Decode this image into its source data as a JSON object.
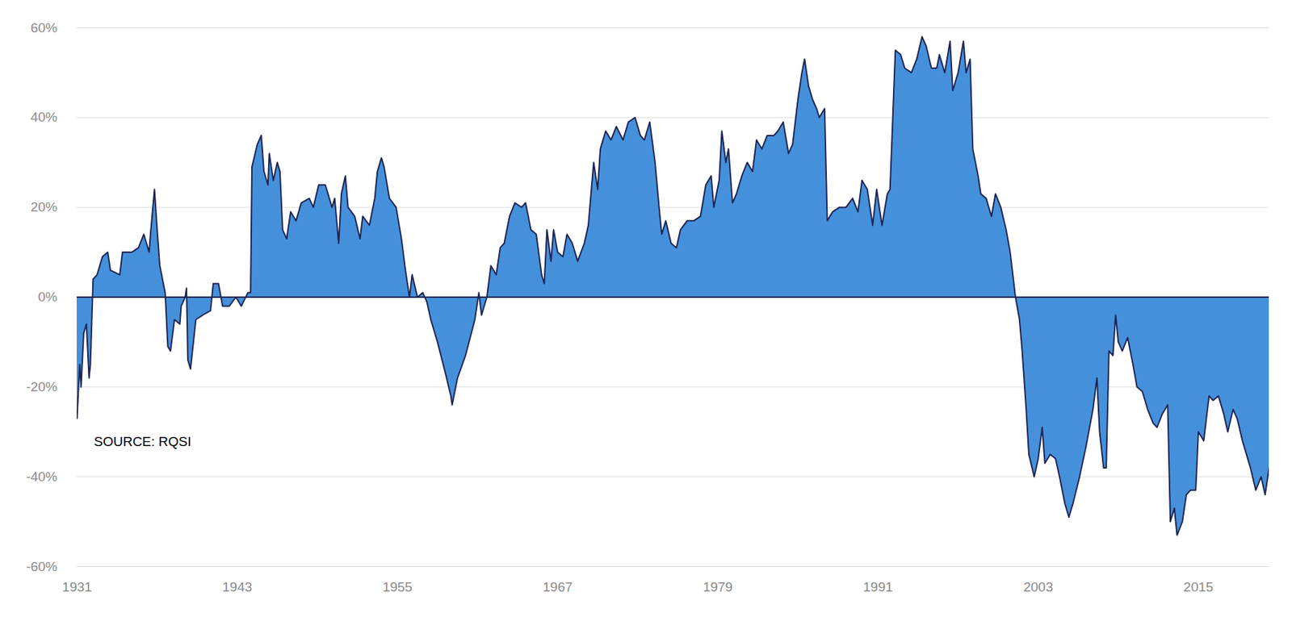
{
  "chart_data": {
    "type": "area",
    "color": "#4590db",
    "grid": true,
    "annotations": [
      {
        "text": "SOURCE: RQSI"
      }
    ],
    "xlim": [
      1931,
      2020.3
    ],
    "xticks": [
      1931,
      1943,
      1955,
      1967,
      1979,
      1991,
      2003,
      2015
    ],
    "ylim": [
      -60,
      60
    ],
    "yticks": [
      {
        "value": -60,
        "label": "-60%"
      },
      {
        "value": -40,
        "label": "-40%"
      },
      {
        "value": -20,
        "label": "-20%"
      },
      {
        "value": 0,
        "label": "0%"
      },
      {
        "value": 20,
        "label": "20%"
      },
      {
        "value": 40,
        "label": "40%"
      },
      {
        "value": 60,
        "label": "60%"
      }
    ],
    "x": [
      1931.0,
      1931.2,
      1931.3,
      1931.5,
      1931.7,
      1931.9,
      1932.0,
      1932.2,
      1932.5,
      1932.9,
      1933.3,
      1933.5,
      1934.2,
      1934.4,
      1935.1,
      1935.6,
      1936.0,
      1936.4,
      1936.5,
      1936.8,
      1937.0,
      1937.2,
      1937.6,
      1937.8,
      1938.0,
      1938.3,
      1938.7,
      1938.8,
      1939.1,
      1939.2,
      1939.3,
      1939.5,
      1939.9,
      1940.4,
      1941.0,
      1941.2,
      1941.6,
      1941.9,
      1942.4,
      1942.9,
      1943.3,
      1943.8,
      1944.0,
      1944.1,
      1944.5,
      1944.8,
      1945.0,
      1945.3,
      1945.4,
      1945.7,
      1946.0,
      1946.2,
      1946.4,
      1946.7,
      1947.0,
      1947.4,
      1947.8,
      1948.4,
      1948.7,
      1949.1,
      1949.6,
      1950.1,
      1950.3,
      1950.6,
      1950.8,
      1951.1,
      1951.3,
      1951.8,
      1952.2,
      1952.4,
      1952.9,
      1953.3,
      1953.5,
      1953.8,
      1954.0,
      1954.4,
      1954.9,
      1955.3,
      1955.6,
      1955.9,
      1956.1,
      1956.5,
      1956.9,
      1957.2,
      1957.5,
      1958.0,
      1958.6,
      1959.0,
      1959.1,
      1959.5,
      1960.1,
      1960.8,
      1961.1,
      1961.3,
      1961.7,
      1962.0,
      1962.4,
      1962.7,
      1963.0,
      1963.4,
      1963.8,
      1964.3,
      1964.6,
      1965.0,
      1965.4,
      1965.8,
      1966.0,
      1966.2,
      1966.5,
      1966.7,
      1967.0,
      1967.4,
      1967.7,
      1968.1,
      1968.5,
      1969.0,
      1969.3,
      1969.7,
      1970.0,
      1970.2,
      1970.6,
      1971.0,
      1971.4,
      1971.9,
      1972.3,
      1972.8,
      1973.2,
      1973.5,
      1973.9,
      1974.3,
      1974.6,
      1974.8,
      1975.1,
      1975.5,
      1975.9,
      1976.2,
      1976.7,
      1977.2,
      1977.7,
      1978.1,
      1978.5,
      1978.7,
      1979.1,
      1979.3,
      1979.6,
      1979.8,
      1980.1,
      1980.4,
      1980.8,
      1981.2,
      1981.6,
      1981.9,
      1982.3,
      1982.7,
      1983.2,
      1983.5,
      1983.9,
      1984.3,
      1984.6,
      1985.0,
      1985.3,
      1985.5,
      1985.8,
      1986.1,
      1986.4,
      1986.6,
      1987.0,
      1987.2,
      1987.6,
      1988.1,
      1988.6,
      1989.1,
      1989.5,
      1989.8,
      1990.2,
      1990.6,
      1990.9,
      1991.3,
      1991.7,
      1991.9,
      1992.3,
      1992.7,
      1993.0,
      1993.5,
      1993.9,
      1994.3,
      1994.6,
      1995.0,
      1995.4,
      1995.6,
      1996.0,
      1996.4,
      1996.6,
      1997.0,
      1997.4,
      1997.6,
      1997.9,
      1998.1,
      1998.5,
      1998.7,
      1999.1,
      1999.5,
      1999.8,
      2000.2,
      2000.6,
      2000.9,
      2001.3,
      2001.6,
      2001.8,
      2002.1,
      2002.3,
      2002.7,
      2003.0,
      2003.3,
      2003.5,
      2003.9,
      2004.3,
      2004.6,
      2005.0,
      2005.3,
      2005.6,
      2006.1,
      2006.6,
      2007.1,
      2007.4,
      2007.6,
      2007.9,
      2008.1,
      2008.3,
      2008.6,
      2008.8,
      2009.0,
      2009.3,
      2009.7,
      2010.1,
      2010.4,
      2010.8,
      2011.2,
      2011.6,
      2011.9,
      2012.3,
      2012.7,
      2012.9,
      2013.2,
      2013.4,
      2013.8,
      2014.1,
      2014.4,
      2014.8,
      2015.0,
      2015.4,
      2015.8,
      2016.1,
      2016.5,
      2016.9,
      2017.2,
      2017.6,
      2017.9,
      2018.3,
      2018.7,
      2018.9,
      2019.3,
      2019.7,
      2020.0,
      2020.2,
      2020.3
    ],
    "values": [
      -27,
      -15,
      -20,
      -8,
      -6,
      -18,
      -15,
      4,
      5,
      9,
      10,
      6,
      5,
      10,
      10,
      11,
      14,
      10,
      14,
      24,
      15,
      7,
      1,
      -11,
      -12,
      -5,
      -6,
      -2,
      0,
      2,
      -14,
      -16,
      -5,
      -4,
      -3,
      3,
      3,
      -2,
      -2,
      0,
      -2,
      1,
      1,
      29,
      34,
      36,
      28,
      25,
      32,
      26,
      30,
      28,
      15,
      13,
      19,
      17,
      21,
      22,
      20,
      25,
      25,
      20,
      22,
      12,
      23,
      27,
      20,
      18,
      13,
      18,
      16,
      22,
      28,
      31,
      29,
      22,
      20,
      13,
      6,
      0,
      5,
      0,
      1,
      -1,
      -5,
      -10,
      -17,
      -22,
      -24,
      -18,
      -13,
      -5,
      1,
      -4,
      0,
      7,
      5,
      11,
      12,
      18,
      21,
      20,
      21,
      15,
      14,
      5,
      3,
      15,
      8,
      15,
      10,
      9,
      14,
      12,
      8,
      12,
      16,
      30,
      24,
      33,
      37,
      35,
      38,
      35,
      39,
      40,
      36,
      35,
      39,
      30,
      20,
      14,
      17,
      12,
      11,
      15,
      17,
      17,
      18,
      25,
      27,
      20,
      26,
      37,
      30,
      33,
      21,
      23,
      27,
      30,
      28,
      35,
      33,
      36,
      36,
      37,
      39,
      32,
      34,
      44,
      50,
      53,
      47,
      44,
      42,
      40,
      42,
      17,
      19,
      20,
      20,
      22,
      19,
      26,
      24,
      16,
      24,
      16,
      23,
      24,
      55,
      54,
      51,
      50,
      53,
      58,
      56,
      51,
      51,
      54,
      50,
      57,
      46,
      50,
      57,
      50,
      53,
      33,
      27,
      23,
      22,
      18,
      23,
      20,
      15,
      10,
      0,
      -5,
      -12,
      -25,
      -35,
      -40,
      -36,
      -29,
      -37,
      -35,
      -36,
      -40,
      -46,
      -49,
      -46,
      -40,
      -33,
      -25,
      -18,
      -30,
      -38,
      -38,
      -12,
      -13,
      -4,
      -10,
      -12,
      -9,
      -15,
      -20,
      -21,
      -25,
      -28,
      -29,
      -26,
      -24,
      -50,
      -47,
      -53,
      -50,
      -44,
      -43,
      -43,
      -30,
      -32,
      -22,
      -23,
      -22,
      -26,
      -30,
      -25,
      -27,
      -32,
      -36,
      -38,
      -43,
      -40,
      -44,
      -40,
      -38
    ]
  }
}
